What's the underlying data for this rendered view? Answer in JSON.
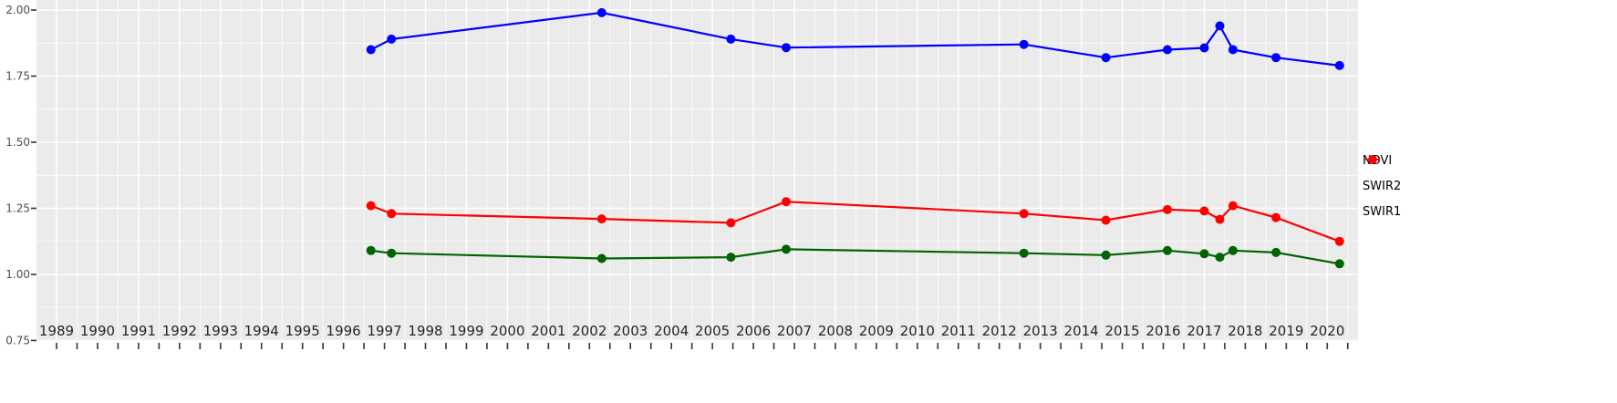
{
  "chart_data": {
    "type": "line",
    "title": "",
    "xlabel": "",
    "ylabel": "",
    "grid": true,
    "legend_position": "right",
    "panel_background": "#EBEBEB",
    "grid_major_color": "#FFFFFF",
    "grid_minor_color": "#FFFFFF",
    "axis_tick_color": "#333333",
    "x_axis_text_color": "#262626",
    "y_axis_text_color": "#4D4D4D",
    "xlim": [
      1988.51,
      2020.75
    ],
    "ylim": [
      0.748,
      2.038
    ],
    "x_tick_values": [
      1989,
      1990,
      1991,
      1992,
      1993,
      1994,
      1995,
      1996,
      1997,
      1998,
      1999,
      2000,
      2001,
      2002,
      2003,
      2004,
      2005,
      2006,
      2007,
      2008,
      2009,
      2010,
      2011,
      2012,
      2013,
      2014,
      2015,
      2016,
      2017,
      2018,
      2019,
      2020
    ],
    "x_tick_labels": [
      "1989",
      "1990",
      "1991",
      "1992",
      "1993",
      "1994",
      "1995",
      "1996",
      "1997",
      "1998",
      "1999",
      "2000",
      "2001",
      "2002",
      "2003",
      "2004",
      "2005",
      "2006",
      "2007",
      "2008",
      "2009",
      "2010",
      "2011",
      "2012",
      "2013",
      "2014",
      "2015",
      "2016",
      "2017",
      "2018",
      "2019",
      "2020"
    ],
    "y_tick_values": [
      0.75,
      1.0,
      1.25,
      1.5,
      1.75,
      2.0
    ],
    "y_tick_labels": [
      "0.75",
      "1.00",
      "1.25",
      "1.50",
      "1.75",
      "2.00"
    ],
    "y_minor_values": [
      0.875,
      1.125,
      1.375,
      1.625,
      1.875
    ],
    "x": [
      1996.67,
      1997.17,
      2002.3,
      2005.45,
      2006.8,
      2012.6,
      2014.6,
      2016.1,
      2017.0,
      2017.38,
      2017.7,
      2018.75,
      2020.3
    ],
    "series": [
      {
        "name": "NDVI",
        "color": "#0000FF",
        "values": [
          1.85,
          1.89,
          1.99,
          1.89,
          1.858,
          1.87,
          1.82,
          1.85,
          1.857,
          1.94,
          1.85,
          1.82,
          1.79
        ]
      },
      {
        "name": "SWIR2",
        "color": "#006400",
        "values": [
          1.09,
          1.08,
          1.06,
          1.065,
          1.095,
          1.08,
          1.073,
          1.09,
          1.078,
          1.065,
          1.09,
          1.083,
          1.04
        ]
      },
      {
        "name": "SWIR1",
        "color": "#FF0000",
        "values": [
          1.26,
          1.23,
          1.21,
          1.195,
          1.275,
          1.23,
          1.205,
          1.245,
          1.24,
          1.208,
          1.26,
          1.215,
          1.125
        ]
      }
    ]
  }
}
